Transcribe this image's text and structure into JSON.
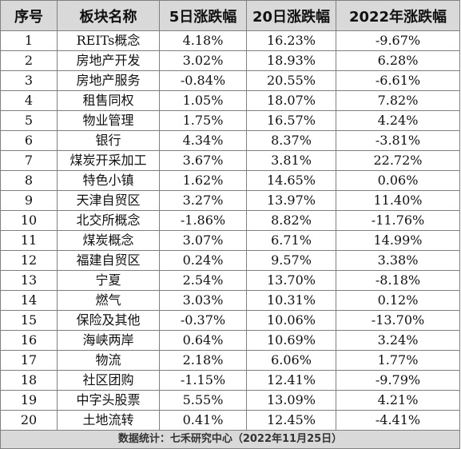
{
  "table": {
    "headers": [
      "序号",
      "板块名称",
      "5日涨跌幅",
      "20日涨跌幅",
      "2022年涨跌幅"
    ],
    "rows": [
      [
        "1",
        "REITs概念",
        "4.18%",
        "16.23%",
        "-9.67%"
      ],
      [
        "2",
        "房地产开发",
        "3.02%",
        "18.93%",
        "6.28%"
      ],
      [
        "3",
        "房地产服务",
        "-0.84%",
        "20.55%",
        "-6.61%"
      ],
      [
        "4",
        "租售同权",
        "1.05%",
        "18.07%",
        "7.82%"
      ],
      [
        "5",
        "物业管理",
        "1.75%",
        "16.57%",
        "4.24%"
      ],
      [
        "6",
        "银行",
        "4.34%",
        "8.37%",
        "-3.81%"
      ],
      [
        "7",
        "煤炭开采加工",
        "3.67%",
        "3.81%",
        "22.72%"
      ],
      [
        "8",
        "特色小镇",
        "1.62%",
        "14.65%",
        "0.06%"
      ],
      [
        "9",
        "天津自贸区",
        "3.27%",
        "13.97%",
        "11.40%"
      ],
      [
        "10",
        "北交所概念",
        "-1.86%",
        "8.82%",
        "-11.76%"
      ],
      [
        "11",
        "煤炭概念",
        "3.07%",
        "6.71%",
        "14.99%"
      ],
      [
        "12",
        "福建自贸区",
        "0.24%",
        "9.57%",
        "3.38%"
      ],
      [
        "13",
        "宁夏",
        "2.54%",
        "13.70%",
        "-8.18%"
      ],
      [
        "14",
        "燃气",
        "3.03%",
        "10.31%",
        "0.12%"
      ],
      [
        "15",
        "保险及其他",
        "-0.37%",
        "10.06%",
        "-13.70%"
      ],
      [
        "16",
        "海峡两岸",
        "0.64%",
        "10.69%",
        "3.24%"
      ],
      [
        "17",
        "物流",
        "2.18%",
        "6.06%",
        "1.77%"
      ],
      [
        "18",
        "社区团购",
        "-1.15%",
        "12.41%",
        "-9.79%"
      ],
      [
        "19",
        "中字头股票",
        "5.55%",
        "13.09%",
        "4.21%"
      ],
      [
        "20",
        "土地流转",
        "0.41%",
        "12.45%",
        "-4.41%"
      ]
    ]
  },
  "footer": {
    "source": "数据统计：七禾研究中心（2022年11月25日）"
  }
}
